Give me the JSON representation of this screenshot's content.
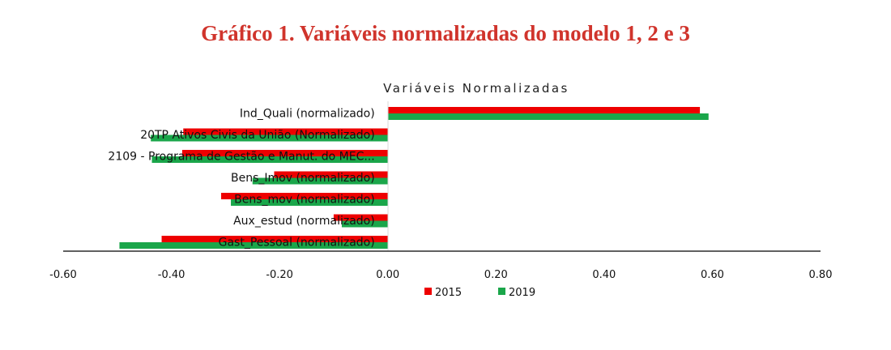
{
  "page": {
    "title": "Gráfico 1. Variáveis normalizadas do modelo 1, 2 e 3"
  },
  "colors": {
    "title": "#d0342c",
    "series_2015": "#ee0000",
    "series_2019": "#1aa64a",
    "axis": "#000000"
  },
  "chart_data": {
    "type": "bar",
    "orientation": "horizontal",
    "title": "Variáveis Normalizadas",
    "categories": [
      "Ind_Quali (normalizado)",
      "20TP Ativos Civis da União (Normalizado)",
      "2109 - Programa de Gestão e Manut. do MEC...",
      "Bens_Imov (normalizado)",
      "Bens_mov (normalizado)",
      "Aux_estud  (normalizado)",
      "Gast_Pessoal (normalizado)"
    ],
    "series": [
      {
        "name": "2015",
        "values": [
          0.577,
          -0.378,
          -0.38,
          -0.21,
          -0.308,
          -0.1,
          -0.418
        ]
      },
      {
        "name": "2019",
        "values": [
          0.593,
          -0.438,
          -0.436,
          -0.25,
          -0.29,
          -0.085,
          -0.496
        ]
      }
    ],
    "xlim": [
      -0.6,
      0.8
    ],
    "x_ticks": [
      "-0.60",
      "-0.40",
      "-0.20",
      "0.00",
      "0.20",
      "0.40",
      "0.60",
      "0.80"
    ],
    "x_tick_values": [
      -0.6,
      -0.4,
      -0.2,
      0.0,
      0.2,
      0.4,
      0.6,
      0.8
    ],
    "legend_position": "bottom-center",
    "grid": false
  }
}
